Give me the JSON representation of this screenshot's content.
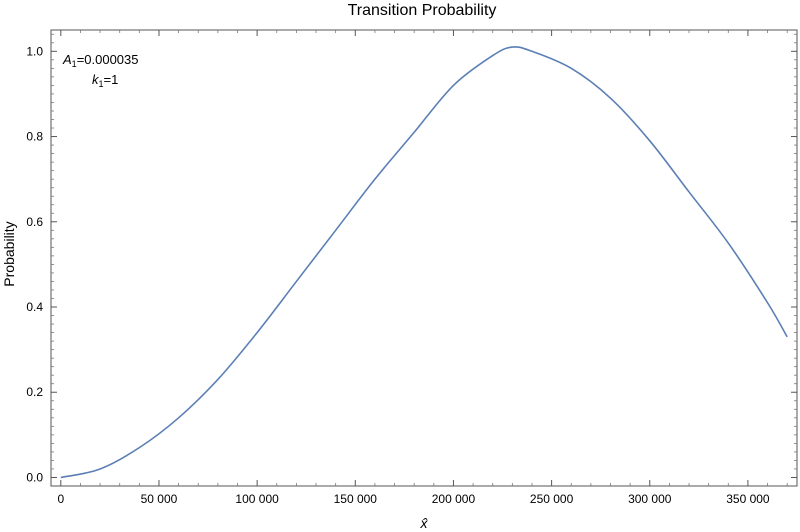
{
  "chart_data": {
    "type": "line",
    "title": "Transition Probability",
    "xlabel": "x̂",
    "ylabel": "Probability",
    "xlim": [
      -5000,
      375000
    ],
    "ylim": [
      -0.02,
      1.05
    ],
    "grid": false,
    "x_ticks": [
      0,
      50000,
      100000,
      150000,
      200000,
      250000,
      300000,
      350000
    ],
    "x_tick_labels": [
      "0",
      "50 000",
      "100 000",
      "150 000",
      "200 000",
      "250 000",
      "300 000",
      "350 000"
    ],
    "y_ticks": [
      0.0,
      0.2,
      0.4,
      0.6,
      0.8,
      1.0
    ],
    "y_tick_labels": [
      "0.0",
      "0.2",
      "0.4",
      "0.6",
      "0.8",
      "1.0"
    ],
    "annotations": {
      "a_symbol": "A",
      "a_sub": "1",
      "a_value": "=0.000035",
      "k_symbol": "k",
      "k_sub": "1",
      "k_value": "=1"
    },
    "series": [
      {
        "color": "#5b7fb5",
        "x": [
          0,
          20000,
          40000,
          60000,
          80000,
          100000,
          120000,
          140000,
          160000,
          180000,
          200000,
          220000,
          230000,
          240000,
          260000,
          280000,
          300000,
          320000,
          340000,
          360000,
          370000
        ],
        "y": [
          0.0,
          0.02,
          0.07,
          0.14,
          0.23,
          0.34,
          0.46,
          0.58,
          0.7,
          0.81,
          0.92,
          0.99,
          1.01,
          1.0,
          0.96,
          0.89,
          0.79,
          0.67,
          0.55,
          0.41,
          0.33
        ]
      }
    ]
  }
}
